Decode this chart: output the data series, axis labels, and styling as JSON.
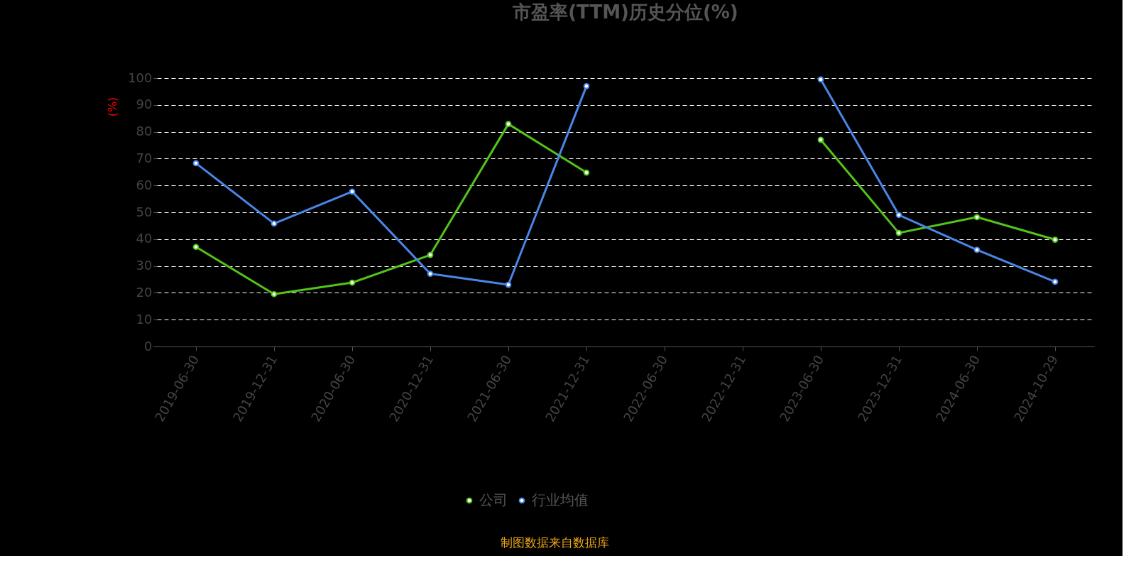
{
  "chart_data": {
    "type": "line",
    "title": "市盈率(TTM)历史分位(%)",
    "ylabel": "(%)",
    "categories": [
      "2019-06-30",
      "2019-12-31",
      "2020-06-30",
      "2020-12-31",
      "2021-06-30",
      "2021-12-31",
      "2022-06-30",
      "2022-12-31",
      "2023-06-30",
      "2023-12-31",
      "2024-06-30",
      "2024-10-29"
    ],
    "series": [
      {
        "name": "公司",
        "color": "#52c41a",
        "values": [
          37.1,
          19.5,
          23.8,
          34.1,
          82.9,
          64.8,
          null,
          null,
          77,
          42.3,
          48.2,
          39.8
        ]
      },
      {
        "name": "行业均值",
        "color": "#4a86e8",
        "values": [
          68.3,
          45.8,
          57.7,
          27.1,
          23,
          97,
          null,
          null,
          99.5,
          49,
          36,
          24.1
        ]
      }
    ],
    "ylim": [
      0,
      100
    ],
    "yticks": [
      0,
      10,
      20,
      30,
      40,
      50,
      60,
      70,
      80,
      90,
      100
    ],
    "grid": "y",
    "legend": "bottom",
    "marker": "circle",
    "line_style": "solid",
    "annotations": [
      "制图数据来自数据库"
    ]
  }
}
